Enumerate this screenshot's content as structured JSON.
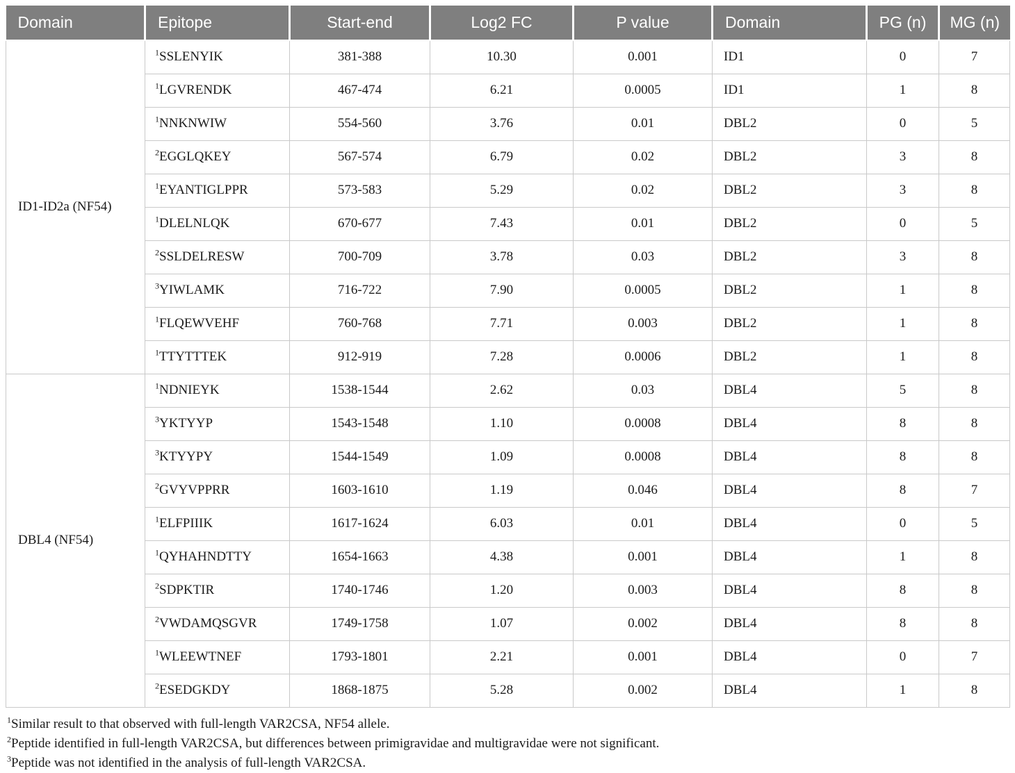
{
  "table": {
    "headers": [
      {
        "label": "Domain",
        "align": "left"
      },
      {
        "label": "Epitope",
        "align": "left"
      },
      {
        "label": "Start-end",
        "align": "center"
      },
      {
        "label": "Log2 FC",
        "align": "center"
      },
      {
        "label": "P value",
        "align": "center"
      },
      {
        "label": "Domain",
        "align": "left"
      },
      {
        "label": "PG (n)",
        "align": "center"
      },
      {
        "label": "MG (n)",
        "align": "center"
      }
    ],
    "groups": [
      {
        "label": "ID1-ID2a (NF54)",
        "rows": [
          {
            "sup": "1",
            "epitope": "SSLENYIK",
            "start_end": "381-388",
            "log2fc": "10.30",
            "p_value": "0.001",
            "domain": "ID1",
            "pg": "0",
            "mg": "7"
          },
          {
            "sup": "1",
            "epitope": "LGVRENDK",
            "start_end": "467-474",
            "log2fc": "6.21",
            "p_value": "0.0005",
            "domain": "ID1",
            "pg": "1",
            "mg": "8"
          },
          {
            "sup": "1",
            "epitope": "NNKNWIW",
            "start_end": "554-560",
            "log2fc": "3.76",
            "p_value": "0.01",
            "domain": "DBL2",
            "pg": "0",
            "mg": "5"
          },
          {
            "sup": "2",
            "epitope": "EGGLQKEY",
            "start_end": "567-574",
            "log2fc": "6.79",
            "p_value": "0.02",
            "domain": "DBL2",
            "pg": "3",
            "mg": "8"
          },
          {
            "sup": "1",
            "epitope": "EYANTIGLPPR",
            "start_end": "573-583",
            "log2fc": "5.29",
            "p_value": "0.02",
            "domain": "DBL2",
            "pg": "3",
            "mg": "8"
          },
          {
            "sup": "1",
            "epitope": "DLELNLQK",
            "start_end": "670-677",
            "log2fc": "7.43",
            "p_value": "0.01",
            "domain": "DBL2",
            "pg": "0",
            "mg": "5"
          },
          {
            "sup": "2",
            "epitope": "SSLDELRESW",
            "start_end": "700-709",
            "log2fc": "3.78",
            "p_value": "0.03",
            "domain": "DBL2",
            "pg": "3",
            "mg": "8"
          },
          {
            "sup": "3",
            "epitope": "YIWLAMK",
            "start_end": "716-722",
            "log2fc": "7.90",
            "p_value": "0.0005",
            "domain": "DBL2",
            "pg": "1",
            "mg": "8"
          },
          {
            "sup": "1",
            "epitope": "FLQEWVEHF",
            "start_end": "760-768",
            "log2fc": "7.71",
            "p_value": "0.003",
            "domain": "DBL2",
            "pg": "1",
            "mg": "8"
          },
          {
            "sup": "1",
            "epitope": "TTYTTTEK",
            "start_end": "912-919",
            "log2fc": "7.28",
            "p_value": "0.0006",
            "domain": "DBL2",
            "pg": "1",
            "mg": "8"
          }
        ]
      },
      {
        "label": "DBL4 (NF54)",
        "rows": [
          {
            "sup": "1",
            "epitope": "NDNIEYK",
            "start_end": "1538-1544",
            "log2fc": "2.62",
            "p_value": "0.03",
            "domain": "DBL4",
            "pg": "5",
            "mg": "8"
          },
          {
            "sup": "3",
            "epitope": "YKTYYP",
            "start_end": "1543-1548",
            "log2fc": "1.10",
            "p_value": "0.0008",
            "domain": "DBL4",
            "pg": "8",
            "mg": "8"
          },
          {
            "sup": "3",
            "epitope": "KTYYPY",
            "start_end": "1544-1549",
            "log2fc": "1.09",
            "p_value": "0.0008",
            "domain": "DBL4",
            "pg": "8",
            "mg": "8"
          },
          {
            "sup": "2",
            "epitope": "GVYVPPRR",
            "start_end": "1603-1610",
            "log2fc": "1.19",
            "p_value": "0.046",
            "domain": "DBL4",
            "pg": "8",
            "mg": "7"
          },
          {
            "sup": "1",
            "epitope": "ELFPIIIK",
            "start_end": "1617-1624",
            "log2fc": "6.03",
            "p_value": "0.01",
            "domain": "DBL4",
            "pg": "0",
            "mg": "5"
          },
          {
            "sup": "1",
            "epitope": "QYHAHNDTTY",
            "start_end": "1654-1663",
            "log2fc": "4.38",
            "p_value": "0.001",
            "domain": "DBL4",
            "pg": "1",
            "mg": "8"
          },
          {
            "sup": "2",
            "epitope": "SDPKTIR",
            "start_end": "1740-1746",
            "log2fc": "1.20",
            "p_value": "0.003",
            "domain": "DBL4",
            "pg": "8",
            "mg": "8"
          },
          {
            "sup": "2",
            "epitope": "VWDAMQSGVR",
            "start_end": "1749-1758",
            "log2fc": "1.07",
            "p_value": "0.002",
            "domain": "DBL4",
            "pg": "8",
            "mg": "8"
          },
          {
            "sup": "1",
            "epitope": "WLEEWTNEF",
            "start_end": "1793-1801",
            "log2fc": "2.21",
            "p_value": "0.001",
            "domain": "DBL4",
            "pg": "0",
            "mg": "7"
          },
          {
            "sup": "2",
            "epitope": "ESEDGKDY",
            "start_end": "1868-1875",
            "log2fc": "5.28",
            "p_value": "0.002",
            "domain": "DBL4",
            "pg": "1",
            "mg": "8"
          }
        ]
      }
    ]
  },
  "footnotes": [
    {
      "sup": "1",
      "text": "Similar result to that observed with full-length VAR2CSA, NF54 allele."
    },
    {
      "sup": "2",
      "text": "Peptide identified in full-length VAR2CSA, but differences between primigravidae and multigravidae were not significant."
    },
    {
      "sup": "3",
      "text": "Peptide was not identified in the analysis of full-length VAR2CSA."
    }
  ],
  "colors": {
    "header_bg": "#7f7f7f",
    "header_text": "#ffffff",
    "border": "#c9c9c9",
    "body_text": "#1c1c1c"
  }
}
